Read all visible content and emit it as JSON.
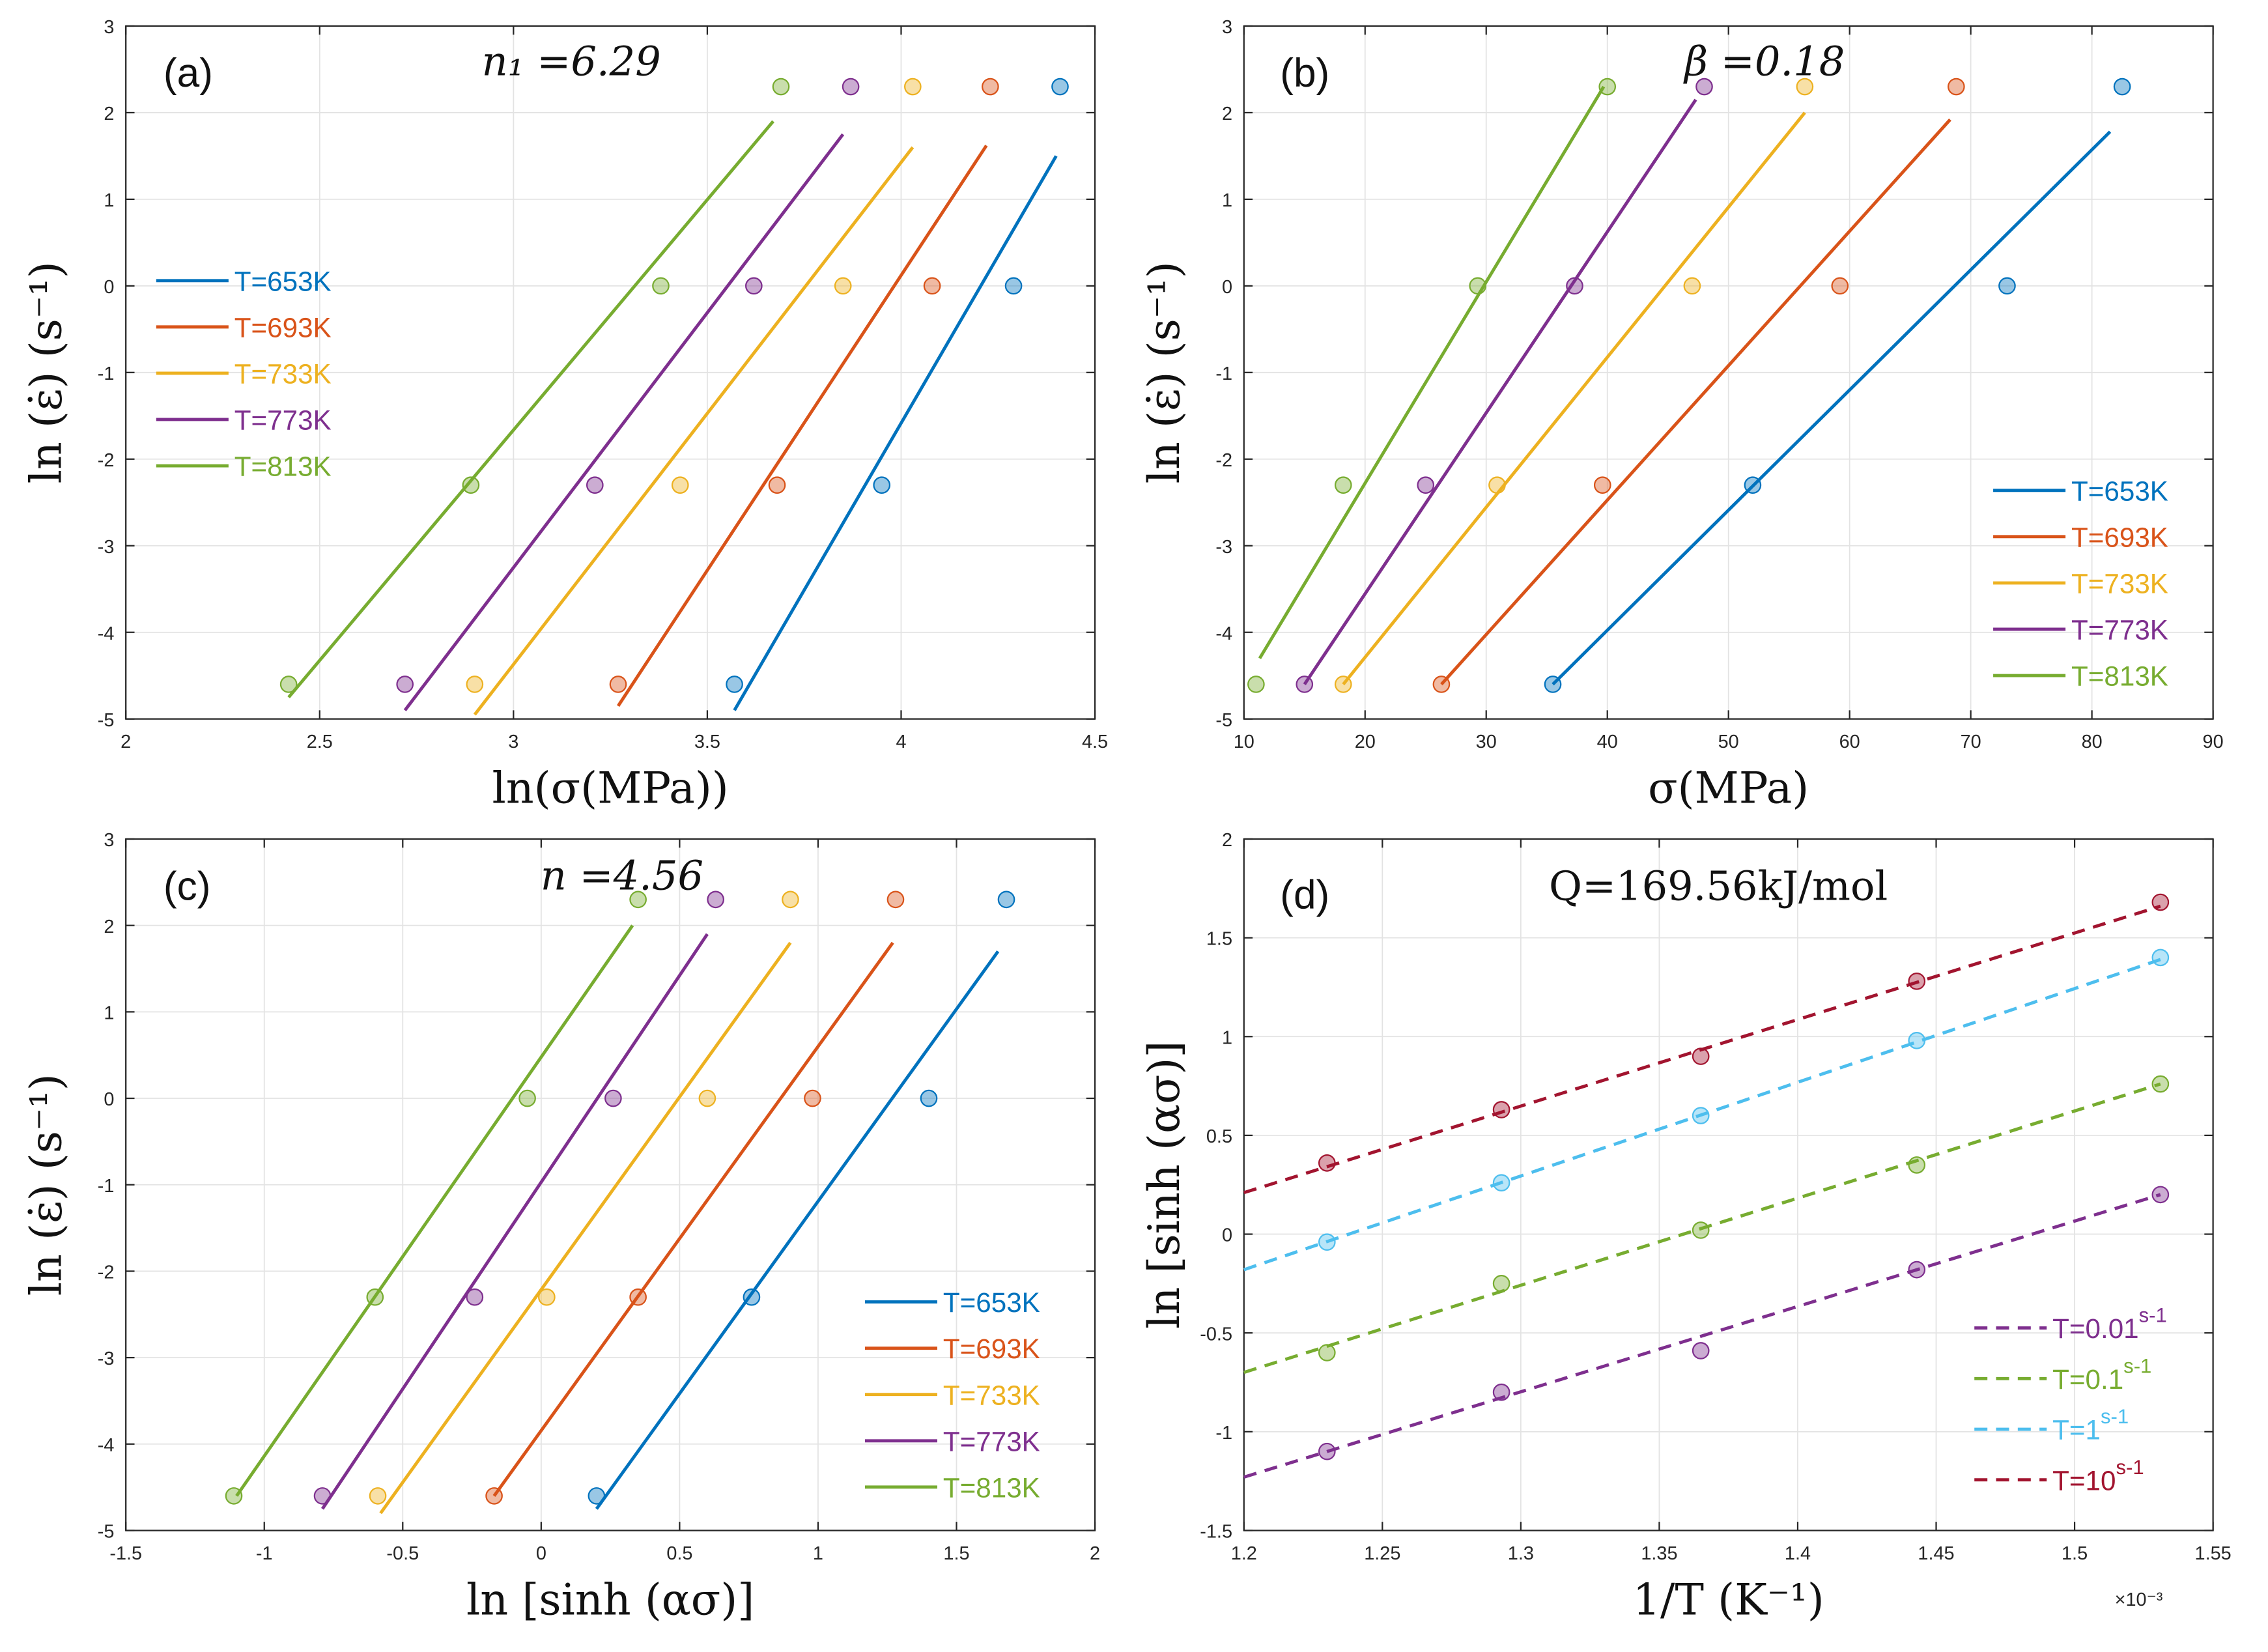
{
  "chart_data": [
    {
      "type": "scatter",
      "panel_label": "(a)",
      "annotation": "n₁ =6.29",
      "xlabel": "ln(σ(MPa))",
      "ylabel": "ln (ε̇) (s⁻¹)",
      "xlim": [
        2,
        4.5
      ],
      "ylim": [
        -5,
        3
      ],
      "xticks": [
        2,
        2.5,
        3,
        3.5,
        4,
        4.5
      ],
      "yticks": [
        -5,
        -4,
        -3,
        -2,
        -1,
        0,
        1,
        2,
        3
      ],
      "grid": true,
      "legend_position": "middle-left",
      "y_points": [
        -4.6,
        -2.3,
        0,
        2.3
      ],
      "series": [
        {
          "name": "T=653K",
          "color": "#0072BD",
          "x": [
            3.57,
            3.95,
            4.29,
            4.41
          ],
          "fit": [
            [
              3.57,
              -4.9
            ],
            [
              4.4,
              1.5
            ]
          ]
        },
        {
          "name": "T=693K",
          "color": "#D95319",
          "x": [
            3.27,
            3.68,
            4.08,
            4.23
          ],
          "fit": [
            [
              3.27,
              -4.85
            ],
            [
              4.22,
              1.62
            ]
          ]
        },
        {
          "name": "T=733K",
          "color": "#EDB120",
          "x": [
            2.9,
            3.43,
            3.85,
            4.03
          ],
          "fit": [
            [
              2.9,
              -4.95
            ],
            [
              4.03,
              1.6
            ]
          ]
        },
        {
          "name": "T=773K",
          "color": "#7E2F8E",
          "x": [
            2.72,
            3.21,
            3.62,
            3.87
          ],
          "fit": [
            [
              2.72,
              -4.9
            ],
            [
              3.85,
              1.75
            ]
          ]
        },
        {
          "name": "T=813K",
          "color": "#77AC30",
          "x": [
            2.42,
            2.89,
            3.38,
            3.69
          ],
          "fit": [
            [
              2.42,
              -4.75
            ],
            [
              3.67,
              1.9
            ]
          ]
        }
      ]
    },
    {
      "type": "scatter",
      "panel_label": "(b)",
      "annotation": "β =0.18",
      "xlabel": "σ(MPa)",
      "ylabel": "ln (ε̇) (s⁻¹)",
      "xlim": [
        10,
        90
      ],
      "ylim": [
        -5,
        3
      ],
      "xticks": [
        10,
        20,
        30,
        40,
        50,
        60,
        70,
        80,
        90
      ],
      "yticks": [
        -5,
        -4,
        -3,
        -2,
        -1,
        0,
        1,
        2,
        3
      ],
      "grid": true,
      "legend_position": "bottom-right",
      "y_points": [
        -4.6,
        -2.3,
        0,
        2.3
      ],
      "series": [
        {
          "name": "T=653K",
          "color": "#0072BD",
          "x": [
            35.5,
            52,
            73,
            82.5
          ],
          "fit": [
            [
              35.5,
              -4.6
            ],
            [
              81.5,
              1.78
            ]
          ]
        },
        {
          "name": "T=693K",
          "color": "#D95319",
          "x": [
            26.3,
            39.6,
            59.2,
            68.8
          ],
          "fit": [
            [
              26.3,
              -4.6
            ],
            [
              68.3,
              1.92
            ]
          ]
        },
        {
          "name": "T=733K",
          "color": "#EDB120",
          "x": [
            18.2,
            30.9,
            47,
            56.3
          ],
          "fit": [
            [
              18.2,
              -4.6
            ],
            [
              56.3,
              2.0
            ]
          ]
        },
        {
          "name": "T=773K",
          "color": "#7E2F8E",
          "x": [
            15,
            25,
            37.3,
            48
          ],
          "fit": [
            [
              15,
              -4.6
            ],
            [
              47.3,
              2.15
            ]
          ]
        },
        {
          "name": "T=813K",
          "color": "#77AC30",
          "x": [
            11,
            18.2,
            29.3,
            40
          ],
          "fit": [
            [
              11.3,
              -4.3
            ],
            [
              39.7,
              2.3
            ]
          ]
        }
      ]
    },
    {
      "type": "scatter",
      "panel_label": "(c)",
      "annotation": "n =4.56",
      "xlabel": "ln [sinh (ασ)]",
      "ylabel": "ln (ε̇) (s⁻¹)",
      "xlim": [
        -1.5,
        2
      ],
      "ylim": [
        -5,
        3
      ],
      "xticks": [
        -1.5,
        -1,
        -0.5,
        0,
        0.5,
        1,
        1.5,
        2
      ],
      "yticks": [
        -5,
        -4,
        -3,
        -2,
        -1,
        0,
        1,
        2,
        3
      ],
      "grid": true,
      "legend_position": "bottom-right",
      "y_points": [
        -4.6,
        -2.3,
        0,
        2.3
      ],
      "series": [
        {
          "name": "T=653K",
          "color": "#0072BD",
          "x": [
            0.2,
            0.76,
            1.4,
            1.68
          ],
          "fit": [
            [
              0.2,
              -4.75
            ],
            [
              1.65,
              1.7
            ]
          ]
        },
        {
          "name": "T=693K",
          "color": "#D95319",
          "x": [
            -0.17,
            0.35,
            0.98,
            1.28
          ],
          "fit": [
            [
              -0.17,
              -4.6
            ],
            [
              1.27,
              1.8
            ]
          ]
        },
        {
          "name": "T=733K",
          "color": "#EDB120",
          "x": [
            -0.59,
            0.02,
            0.6,
            0.9
          ],
          "fit": [
            [
              -0.58,
              -4.8
            ],
            [
              0.9,
              1.8
            ]
          ]
        },
        {
          "name": "T=773K",
          "color": "#7E2F8E",
          "x": [
            -0.79,
            -0.24,
            0.26,
            0.63
          ],
          "fit": [
            [
              -0.79,
              -4.75
            ],
            [
              0.6,
              1.9
            ]
          ]
        },
        {
          "name": "T=813K",
          "color": "#77AC30",
          "x": [
            -1.11,
            -0.6,
            -0.05,
            0.35
          ],
          "fit": [
            [
              -1.1,
              -4.6
            ],
            [
              0.33,
              2.0
            ]
          ]
        }
      ]
    },
    {
      "type": "scatter",
      "panel_label": "(d)",
      "annotation": "Q=169.56kJ/mol",
      "xlabel": "1/T (K⁻¹)",
      "ylabel": "ln [sinh (ασ)]",
      "x_exponent": "×10⁻³",
      "xlim": [
        1.2,
        1.55
      ],
      "ylim": [
        -1.5,
        2
      ],
      "xticks": [
        1.2,
        1.25,
        1.3,
        1.35,
        1.4,
        1.45,
        1.5,
        1.55
      ],
      "yticks": [
        -1.5,
        -1,
        -0.5,
        0,
        0.5,
        1,
        1.5,
        2
      ],
      "grid": true,
      "legend_position": "bottom-right",
      "x_points": [
        1.23,
        1.293,
        1.365,
        1.443,
        1.531
      ],
      "series": [
        {
          "name": "T=0.01",
          "sup": "s-1",
          "color": "#7E2F8E",
          "y": [
            -1.1,
            -0.8,
            -0.59,
            -0.18,
            0.2
          ],
          "fit": [
            [
              1.2,
              -1.23
            ],
            [
              1.531,
              0.2
            ]
          ]
        },
        {
          "name": "T=0.1",
          "sup": "s-1",
          "color": "#77AC30",
          "y": [
            -0.6,
            -0.25,
            0.02,
            0.35,
            0.76
          ],
          "fit": [
            [
              1.2,
              -0.7
            ],
            [
              1.531,
              0.76
            ]
          ]
        },
        {
          "name": "T=1",
          "sup": "s-1",
          "color": "#4DBEEE",
          "y": [
            -0.04,
            0.26,
            0.6,
            0.98,
            1.4
          ],
          "fit": [
            [
              1.2,
              -0.18
            ],
            [
              1.531,
              1.39
            ]
          ]
        },
        {
          "name": "T=10",
          "sup": "s-1",
          "color": "#A2142F",
          "y": [
            0.36,
            0.63,
            0.9,
            1.28,
            1.68
          ],
          "fit": [
            [
              1.2,
              0.21
            ],
            [
              1.531,
              1.66
            ]
          ]
        }
      ]
    }
  ]
}
